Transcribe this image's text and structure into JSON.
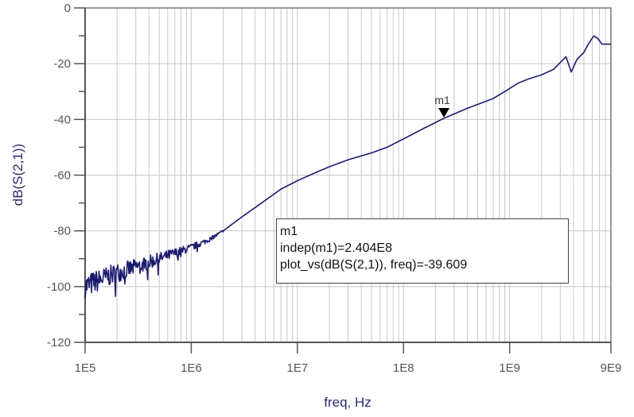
{
  "chart_data": {
    "type": "line",
    "title": "",
    "xlabel": "freq, Hz",
    "ylabel": "dB(S(2,1))",
    "xscale": "log",
    "xlim": [
      100000,
      9000000000
    ],
    "ylim": [
      -120,
      0
    ],
    "x_ticks": [
      {
        "value": 100000,
        "label": "1E5"
      },
      {
        "value": 1000000,
        "label": "1E6"
      },
      {
        "value": 10000000,
        "label": "1E7"
      },
      {
        "value": 100000000,
        "label": "1E8"
      },
      {
        "value": 1000000000,
        "label": "1E9"
      },
      {
        "value": 9000000000,
        "label": "9E9"
      }
    ],
    "y_ticks": [
      0,
      -20,
      -40,
      -60,
      -80,
      -100,
      -120
    ],
    "y_minor_ticks": [
      -10,
      -30,
      -50,
      -70,
      -90,
      -110
    ],
    "grid": true,
    "series": [
      {
        "name": "dB(S(2,1))",
        "color": "#1a1a6e",
        "noisy_below_hz": 2000000,
        "points": [
          [
            100000,
            -100
          ],
          [
            130000,
            -98
          ],
          [
            200000,
            -95
          ],
          [
            300000,
            -93
          ],
          [
            500000,
            -90
          ],
          [
            700000,
            -88
          ],
          [
            1000000,
            -86
          ],
          [
            1500000,
            -83
          ],
          [
            2000000,
            -80
          ],
          [
            3000000,
            -75
          ],
          [
            5000000,
            -69
          ],
          [
            7000000,
            -65
          ],
          [
            10000000,
            -62
          ],
          [
            15000000,
            -59
          ],
          [
            20000000,
            -57
          ],
          [
            30000000,
            -54.5
          ],
          [
            50000000,
            -52
          ],
          [
            70000000,
            -50
          ],
          [
            100000000,
            -47
          ],
          [
            150000000,
            -43.5
          ],
          [
            240400000,
            -39.6
          ],
          [
            400000000,
            -36
          ],
          [
            700000000,
            -32.5
          ],
          [
            900000000,
            -30
          ],
          [
            1200000000,
            -27
          ],
          [
            1500000000,
            -25.5
          ],
          [
            2000000000,
            -24
          ],
          [
            2600000000,
            -22
          ],
          [
            3100000000,
            -19
          ],
          [
            3400000000,
            -17.5
          ],
          [
            3800000000,
            -23
          ],
          [
            4300000000,
            -18.5
          ],
          [
            5000000000,
            -16
          ],
          [
            5500000000,
            -13
          ],
          [
            6200000000,
            -10
          ],
          [
            6800000000,
            -11
          ],
          [
            7400000000,
            -13
          ],
          [
            8000000000,
            -13
          ],
          [
            9000000000,
            -13
          ]
        ]
      }
    ],
    "markers": [
      {
        "name": "m1",
        "x": 240400000,
        "y": -39.609
      }
    ]
  },
  "readout": {
    "line1": "m1",
    "line2": "indep(m1)=2.404E8",
    "line3": "plot_vs(dB(S(2,1)), freq)=-39.609"
  },
  "colors": {
    "trace": "#1a1a6e",
    "axis_title": "#2a2a6e",
    "grid": "#c8c8c8",
    "axis": "#555555"
  }
}
